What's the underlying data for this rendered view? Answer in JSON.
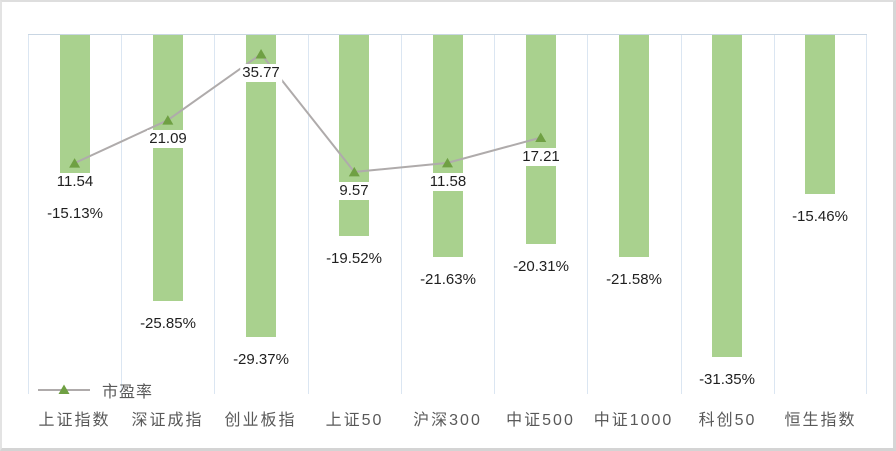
{
  "window": {
    "background": "#ffffff",
    "border_color": "#d9d9d9"
  },
  "chart_data": {
    "type": "bar",
    "subtype": "combo-bar-line",
    "categories": [
      "上证指数",
      "深证成指",
      "创业板指",
      "上证50",
      "沪深300",
      "中证500",
      "中证1000",
      "科创50",
      "恒生指数"
    ],
    "series": [
      {
        "type": "bar",
        "axis": "primary",
        "color": "#A9D18E",
        "values": [
          -15.13,
          -25.85,
          -29.37,
          -19.52,
          -21.63,
          -20.31,
          -21.58,
          -31.35,
          -15.46
        ],
        "labels": [
          "-15.13%",
          "-25.85%",
          "-29.37%",
          "-19.52%",
          "-21.63%",
          "-20.31%",
          "-21.58%",
          "-31.35%",
          "-15.46%"
        ]
      },
      {
        "name": "市盈率",
        "type": "line",
        "axis": "secondary",
        "color": "#AFABAB",
        "marker": "triangle",
        "marker_color": "#6FA043",
        "values": [
          11.54,
          21.09,
          35.77,
          9.57,
          11.58,
          17.21,
          null,
          null,
          null
        ],
        "labels": [
          "11.54",
          "21.09",
          "35.77",
          "9.57",
          "11.58",
          "17.21",
          "",
          "",
          ""
        ]
      }
    ],
    "primary_axis": {
      "min": -35,
      "max": 0,
      "format": "percent",
      "labels_visible": false
    },
    "secondary_axis": {
      "min": -40,
      "max": 40,
      "labels_visible": false
    },
    "grid": {
      "vertical": true,
      "horizontal": false,
      "color": "#dbe6f2"
    },
    "legend": {
      "position": "bottom-left",
      "entries": [
        {
          "label": "市盈率",
          "marker": "line-triangle"
        }
      ]
    }
  },
  "text_colors": {
    "data_label": "#1f1f1f",
    "category_label": "#595959",
    "legend_label": "#595959"
  }
}
